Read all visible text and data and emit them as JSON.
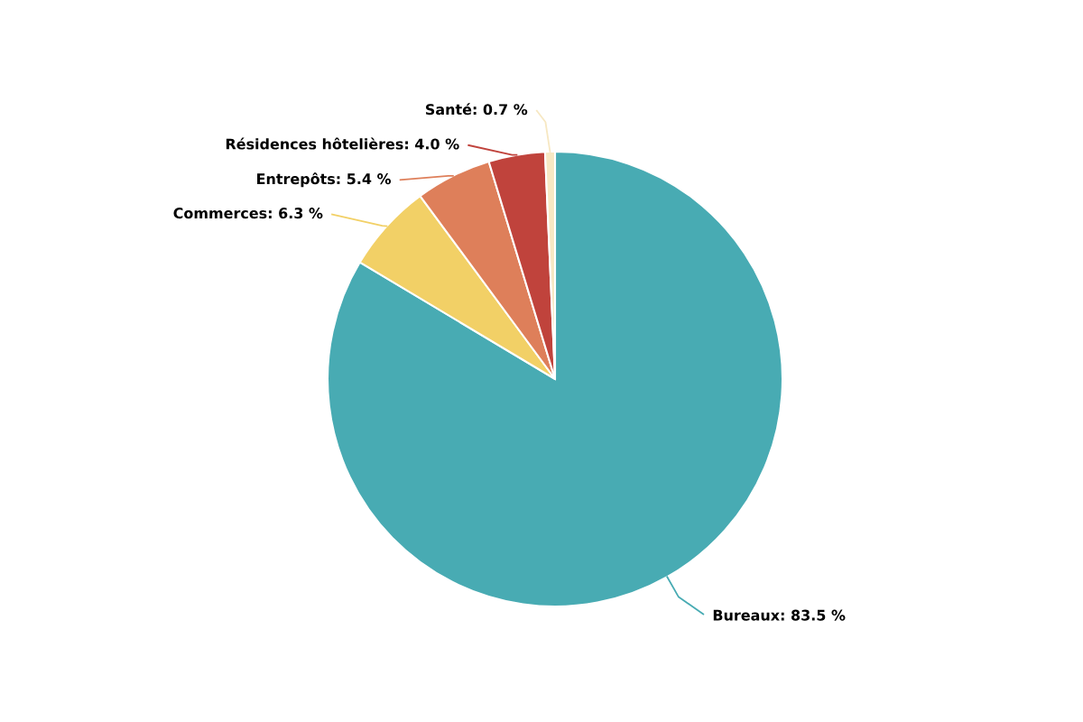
{
  "chart_data": {
    "type": "pie",
    "categories": [
      "Bureaux",
      "Commerces",
      "Entrepôts",
      "Résidences hôtelières",
      "Santé"
    ],
    "values": [
      83.5,
      6.3,
      5.4,
      4.0,
      0.7
    ],
    "value_labels": [
      "83.5 %",
      "6.3 %",
      "5.4 %",
      "4.0 %",
      "0.7 %"
    ],
    "colors": [
      "#48abb3",
      "#f2d066",
      "#de7f5a",
      "#c0433c",
      "#f7e8c3"
    ]
  }
}
